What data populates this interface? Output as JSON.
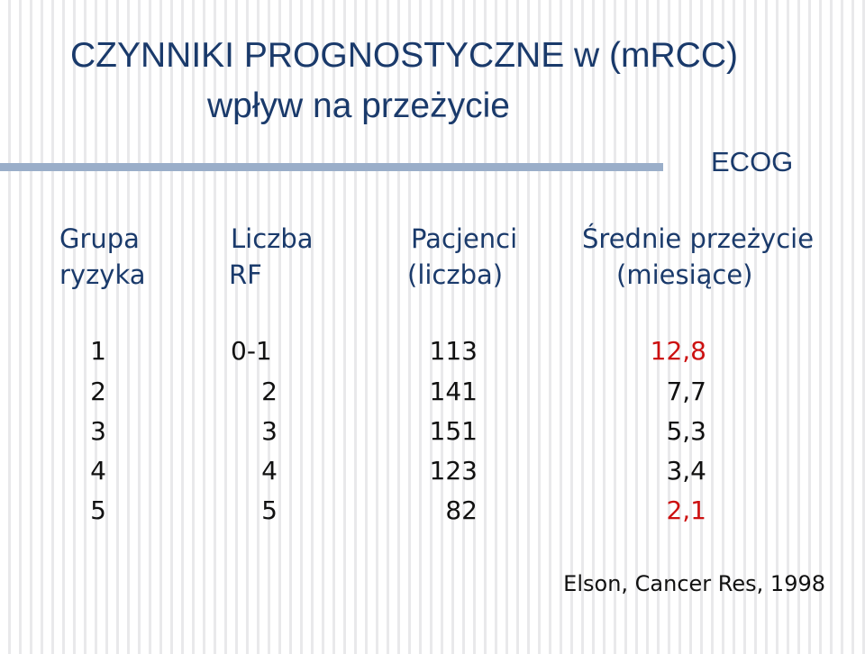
{
  "title": {
    "line1": "CZYNNIKI PROGNOSTYCZNE w (mRCC)",
    "line2": "wpływ na przeżycie"
  },
  "label": "ECOG",
  "table": {
    "headers": [
      {
        "line1": "Grupa",
        "line2": "ryzyka"
      },
      {
        "line1": "Liczba",
        "line2": "RF"
      },
      {
        "line1": "Pacjenci",
        "line2": "(liczba)"
      },
      {
        "line1": "Średnie przeżycie",
        "line2": "(miesiące)"
      }
    ],
    "rows": [
      {
        "group": "1",
        "rf": "0-1",
        "patients": "113",
        "survival": "12,8"
      },
      {
        "group": "2",
        "rf": "2",
        "patients": "141",
        "survival": "7,7"
      },
      {
        "group": "3",
        "rf": "3",
        "patients": "151",
        "survival": "5,3"
      },
      {
        "group": "4",
        "rf": "4",
        "patients": "123",
        "survival": "3,4"
      },
      {
        "group": "5",
        "rf": "5",
        "patients": "82",
        "survival": "2,1"
      }
    ]
  },
  "citation": "Elson, Cancer Res, 1998",
  "colors": {
    "title": "#1a3a6b",
    "highlight": "#cc1111",
    "rule": "#9aaec9"
  }
}
